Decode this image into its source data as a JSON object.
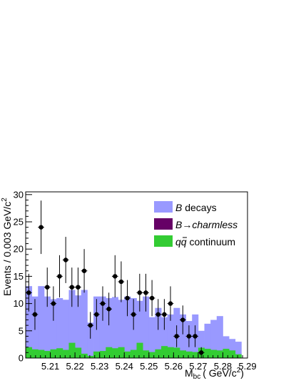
{
  "chart_data": {
    "type": "bar",
    "xlabel_main": "M",
    "xlabel_sub": "bc",
    "xlabel_unit": "( GeV/c",
    "xlabel_unit_sup": "2",
    "xlabel_unit_close": ")",
    "ylabel": "Events / 0.003 GeV/c",
    "ylabel_sup": "2",
    "xlim": [
      5.2,
      5.29
    ],
    "ylim": [
      0,
      30.5
    ],
    "x_ticks": [
      "5.21",
      "5.22",
      "5.23",
      "5.24",
      "5.25",
      "5.26",
      "5.27",
      "5.28",
      "5.29"
    ],
    "x_tick_values": [
      5.21,
      5.22,
      5.23,
      5.24,
      5.25,
      5.26,
      5.27,
      5.28,
      5.29
    ],
    "y_ticks": [
      "0",
      "5",
      "10",
      "15",
      "20",
      "25",
      "30"
    ],
    "y_tick_values": [
      0,
      5,
      10,
      15,
      20,
      25,
      30
    ],
    "bin_edges": [
      5.2,
      5.2025,
      5.205,
      5.2075,
      5.21,
      5.2125,
      5.215,
      5.2175,
      5.22,
      5.2225,
      5.225,
      5.2275,
      5.23,
      5.2325,
      5.235,
      5.2375,
      5.24,
      5.2425,
      5.245,
      5.2475,
      5.25,
      5.2525,
      5.255,
      5.2575,
      5.26,
      5.2625,
      5.265,
      5.2675,
      5.27,
      5.2725,
      5.275,
      5.2775,
      5.28,
      5.2825,
      5.285,
      5.2875
    ],
    "series": [
      {
        "name": "B decays",
        "name_var": "B",
        "name_rest": " decays",
        "color": "#9999ff",
        "values": [
          13.2,
          11.3,
          13.2,
          11.3,
          10.8,
          11.0,
          10.7,
          12.5,
          11.5,
          12.5,
          6.5,
          11.3,
          11.3,
          11.0,
          11.2,
          10.7,
          11.3,
          11.0,
          10.5,
          11.3,
          7.5,
          9.2,
          7.5,
          8.0,
          9.2,
          8.0,
          6.8,
          8.0,
          5.0,
          6.3,
          7.0,
          7.7,
          4.0,
          3.5,
          3.0
        ]
      },
      {
        "name": "B→charmless",
        "name_var": "B",
        "name_arrow": "→",
        "name_rest": "charmless",
        "color": "#660066",
        "values": [
          0.0,
          0.0,
          0.0,
          0.0,
          0.0,
          0.0,
          0.0,
          0.0,
          0.0,
          0.0,
          0.0,
          0.0,
          0.0,
          0.0,
          0.0,
          0.0,
          0.0,
          0.0,
          0.0,
          0.0,
          0.0,
          0.0,
          0.0,
          0.0,
          0.0,
          0.0,
          0.0,
          0.0,
          0.0,
          0.0,
          0.0,
          0.0,
          0.0,
          0.0,
          0.0
        ]
      },
      {
        "name": "q̅q continuum",
        "name_q": "q",
        "name_qbar": "q",
        "name_rest": " continuum",
        "color": "#33cc33",
        "values": [
          2.0,
          1.6,
          1.5,
          1.3,
          1.6,
          1.8,
          1.5,
          2.8,
          1.9,
          0.8,
          0.4,
          1.2,
          1.3,
          2.0,
          1.8,
          2.0,
          1.2,
          1.5,
          2.8,
          1.4,
          1.1,
          1.6,
          2.2,
          2.0,
          1.9,
          1.4,
          1.2,
          1.1,
          1.9,
          1.7,
          1.5,
          1.4,
          1.7,
          1.4,
          0.7
        ]
      }
    ],
    "data_points": {
      "name": "data",
      "x": [
        5.20125,
        5.20375,
        5.20625,
        5.20875,
        5.21125,
        5.21375,
        5.21625,
        5.21875,
        5.22125,
        5.22375,
        5.22625,
        5.22875,
        5.23125,
        5.23375,
        5.23625,
        5.23875,
        5.24125,
        5.24375,
        5.24625,
        5.24875,
        5.25125,
        5.25375,
        5.25625,
        5.25875,
        5.26125,
        5.26375,
        5.26625,
        5.26875,
        5.27125,
        5.27375,
        5.27625,
        5.27875,
        5.28125,
        5.28375,
        5.28625
      ],
      "y": [
        12,
        8,
        24,
        13,
        10,
        15,
        18,
        13,
        13,
        16,
        6,
        8,
        10,
        9,
        15,
        14,
        11,
        8,
        12,
        12,
        11,
        8,
        8,
        10,
        4,
        7,
        4,
        4,
        1,
        0,
        0,
        0,
        0,
        0,
        0
      ]
    },
    "legend_position": "top-right",
    "grid": false
  }
}
